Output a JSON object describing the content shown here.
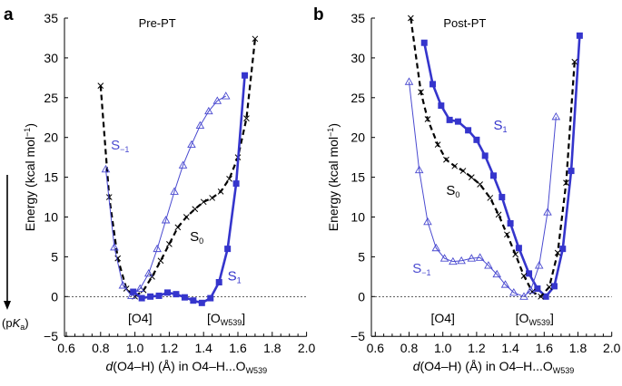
{
  "colors": {
    "s1": "#3535cc",
    "sm1": "#4a4ad0",
    "s0": "#000000"
  },
  "left_arrow_label": {
    "pre": "(p",
    "k": "K",
    "sub": "a",
    "post": ")"
  },
  "chart_data": [
    {
      "panel_letter": "a",
      "type": "line",
      "title": "Pre-PT",
      "xlabel": {
        "d": "d",
        "main": "(O4–H) (Å) in O4–H...O",
        "sub": "W539"
      },
      "ylabel": {
        "main": "Energy (kcal mol",
        "sup": "−1",
        "end": ")"
      },
      "xlim": [
        0.6,
        2.0
      ],
      "ylim": [
        -5,
        35
      ],
      "xticks": [
        "0.6",
        "0.8",
        "1.0",
        "1.2",
        "1.4",
        "1.6",
        "1.8",
        "2.0"
      ],
      "yticks": [
        "−5",
        "0",
        "5",
        "10",
        "15",
        "20",
        "25",
        "30",
        "35"
      ],
      "reference_line": 0,
      "annotations": {
        "o4": "[O4]",
        "ow_main": "[O",
        "ow_sub": "W539",
        "ow_end": "]"
      },
      "series": [
        {
          "name": "S0",
          "label_main": "S",
          "label_sub": "0",
          "style": "dashed-black-x",
          "x": [
            0.8,
            0.85,
            0.9,
            0.95,
            1.0,
            1.05,
            1.1,
            1.15,
            1.2,
            1.25,
            1.3,
            1.35,
            1.4,
            1.45,
            1.5,
            1.55,
            1.6,
            1.65,
            1.7
          ],
          "y": [
            26.5,
            12.5,
            4.8,
            1.0,
            0.0,
            0.8,
            2.5,
            4.5,
            6.6,
            8.7,
            10.0,
            11.0,
            11.9,
            12.4,
            13.2,
            14.8,
            17.5,
            22.4,
            32.4
          ]
        },
        {
          "name": "S−1",
          "label_main": "S",
          "label_sub": "−1",
          "style": "thin-blue-triangle",
          "x": [
            0.83,
            0.88,
            0.93,
            0.98,
            1.03,
            1.08,
            1.13,
            1.18,
            1.23,
            1.28,
            1.33,
            1.38,
            1.43,
            1.48,
            1.53
          ],
          "y": [
            16.0,
            6.2,
            1.4,
            0.1,
            1.0,
            2.9,
            6.0,
            9.6,
            13.2,
            16.5,
            19.1,
            21.5,
            23.3,
            24.6,
            25.2
          ]
        },
        {
          "name": "S1",
          "label_main": "S",
          "label_sub": "1",
          "style": "thick-blue-square",
          "x": [
            0.99,
            1.04,
            1.09,
            1.14,
            1.19,
            1.24,
            1.29,
            1.34,
            1.39,
            1.44,
            1.49,
            1.54,
            1.59,
            1.64
          ],
          "y": [
            0.6,
            -0.2,
            0.0,
            0.1,
            0.5,
            0.3,
            -0.1,
            -0.5,
            -0.8,
            -0.2,
            1.8,
            6.0,
            14.2,
            27.8
          ]
        }
      ]
    },
    {
      "panel_letter": "b",
      "type": "line",
      "title": "Post-PT",
      "xlabel": {
        "d": "d",
        "main": "(O4–H) (Å) in O4–H...O",
        "sub": "W539"
      },
      "ylabel": {
        "main": "Energy (kcal mol",
        "sup": "−1",
        "end": ")"
      },
      "xlim": [
        0.6,
        2.0
      ],
      "ylim": [
        -5,
        35
      ],
      "xticks": [
        "0.6",
        "0.8",
        "1.0",
        "1.2",
        "1.4",
        "1.6",
        "1.8",
        "2.0"
      ],
      "yticks": [
        "−5",
        "0",
        "5",
        "10",
        "15",
        "20",
        "25",
        "30",
        "35"
      ],
      "reference_line": 0,
      "annotations": {
        "o4": "[O4]",
        "ow_main": "[O",
        "ow_sub": "W539",
        "ow_end": "]"
      },
      "series": [
        {
          "name": "S1",
          "label_main": "S",
          "label_sub": "1",
          "style": "thick-blue-square",
          "x": [
            0.89,
            0.94,
            0.99,
            1.04,
            1.09,
            1.15,
            1.2,
            1.25,
            1.3,
            1.35,
            1.4,
            1.45,
            1.51,
            1.56,
            1.61,
            1.66,
            1.71,
            1.76,
            1.81
          ],
          "y": [
            31.9,
            26.7,
            24.0,
            22.2,
            22.0,
            20.9,
            19.7,
            17.7,
            15.2,
            12.5,
            9.2,
            6.1,
            2.9,
            1.0,
            0.0,
            1.3,
            6.0,
            15.8,
            32.8
          ]
        },
        {
          "name": "S0",
          "label_main": "S",
          "label_sub": "0",
          "style": "dashed-black-x",
          "x": [
            0.81,
            0.87,
            0.91,
            0.97,
            1.02,
            1.07,
            1.12,
            1.17,
            1.22,
            1.28,
            1.33,
            1.38,
            1.43,
            1.48,
            1.53,
            1.58,
            1.63,
            1.68,
            1.73,
            1.78
          ],
          "y": [
            35.0,
            25.7,
            22.3,
            19.1,
            17.2,
            16.4,
            15.8,
            15.0,
            14.1,
            12.4,
            10.3,
            7.8,
            5.3,
            2.6,
            0.6,
            0.0,
            1.2,
            5.5,
            14.3,
            29.5
          ]
        },
        {
          "name": "S−1",
          "label_main": "S",
          "label_sub": "−1",
          "style": "thin-blue-triangle",
          "x": [
            0.8,
            0.86,
            0.91,
            0.96,
            1.01,
            1.06,
            1.11,
            1.17,
            1.22,
            1.27,
            1.32,
            1.37,
            1.42,
            1.48,
            1.52,
            1.57,
            1.62,
            1.67
          ],
          "y": [
            27.0,
            15.9,
            9.4,
            6.1,
            4.8,
            4.4,
            4.5,
            4.8,
            4.9,
            3.9,
            2.8,
            1.5,
            0.5,
            0.0,
            0.8,
            3.9,
            10.6,
            22.6
          ]
        }
      ]
    }
  ]
}
